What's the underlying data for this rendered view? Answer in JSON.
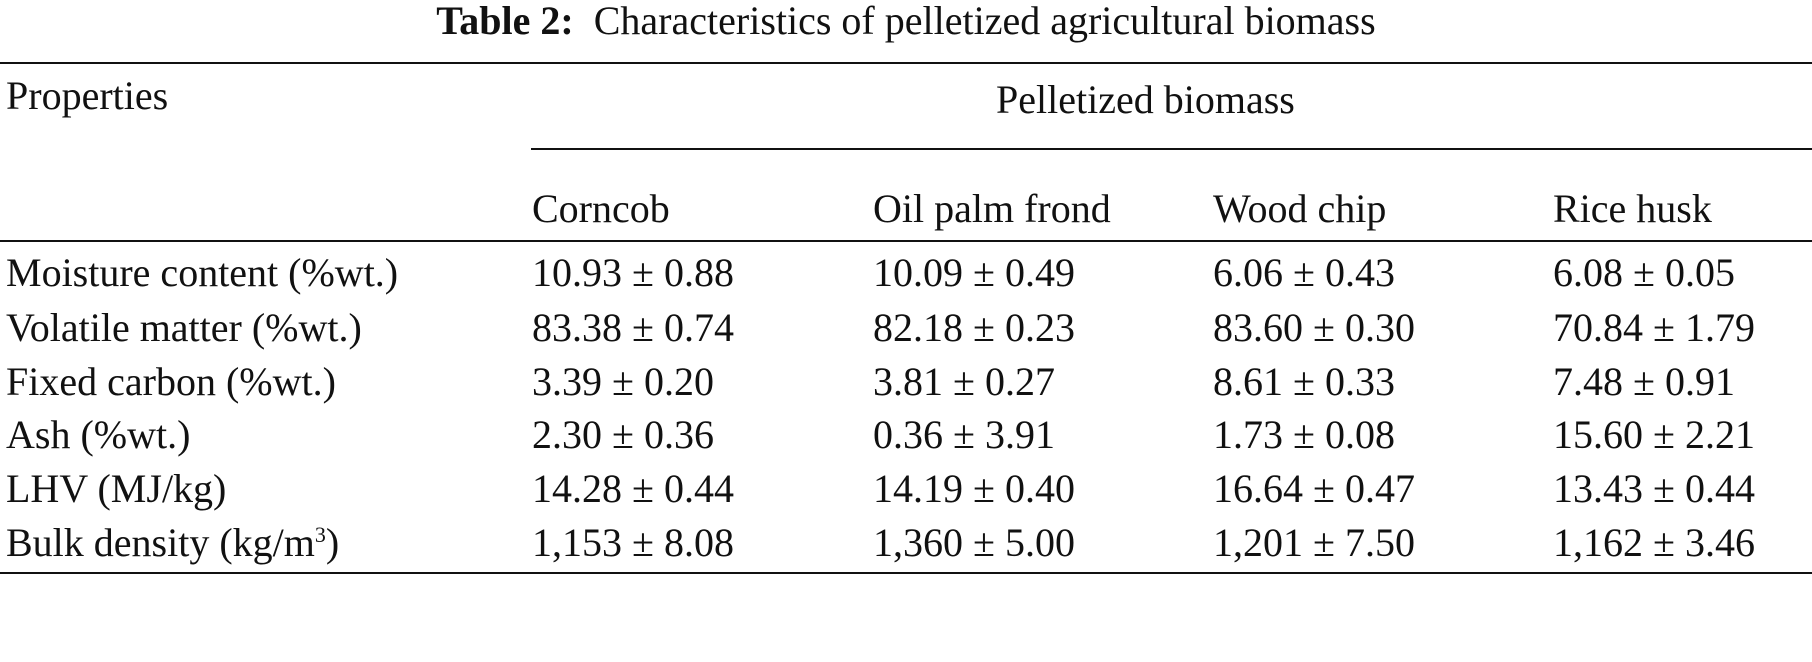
{
  "caption": {
    "label": "Table 2:",
    "title": "Characteristics of pelletized agricultural biomass"
  },
  "table": {
    "row_header_label": "Properties",
    "group_header": "Pelletized biomass",
    "columns": [
      "Corncob",
      "Oil palm frond",
      "Wood chip",
      "Rice husk"
    ],
    "rows": [
      {
        "property": "Moisture content (%wt.)",
        "values": [
          "10.93 ± 0.88",
          "10.09 ± 0.49",
          "6.06 ± 0.43",
          "6.08 ± 0.05"
        ]
      },
      {
        "property": "Volatile matter (%wt.)",
        "values": [
          "83.38 ± 0.74",
          "82.18 ± 0.23",
          "83.60 ± 0.30",
          "70.84 ± 1.79"
        ]
      },
      {
        "property": "Fixed carbon (%wt.)",
        "values": [
          "3.39 ± 0.20",
          "3.81 ± 0.27",
          "8.61 ± 0.33",
          "7.48 ± 0.91"
        ]
      },
      {
        "property": "Ash (%wt.)",
        "values": [
          "2.30 ± 0.36",
          "0.36 ± 3.91",
          "1.73 ± 0.08",
          "15.60 ± 2.21"
        ]
      },
      {
        "property": "LHV (MJ/kg)",
        "values": [
          "14.28 ± 0.44",
          "14.19 ± 0.40",
          "16.64 ± 0.47",
          "13.43 ± 0.44"
        ]
      },
      {
        "property": "Bulk density (kg/m",
        "property_superscript": "3",
        "property_suffix": ")",
        "values": [
          "1,153 ± 8.08",
          "1,360 ± 5.00",
          "1,201 ± 7.50",
          "1,162 ± 3.46"
        ]
      }
    ]
  }
}
